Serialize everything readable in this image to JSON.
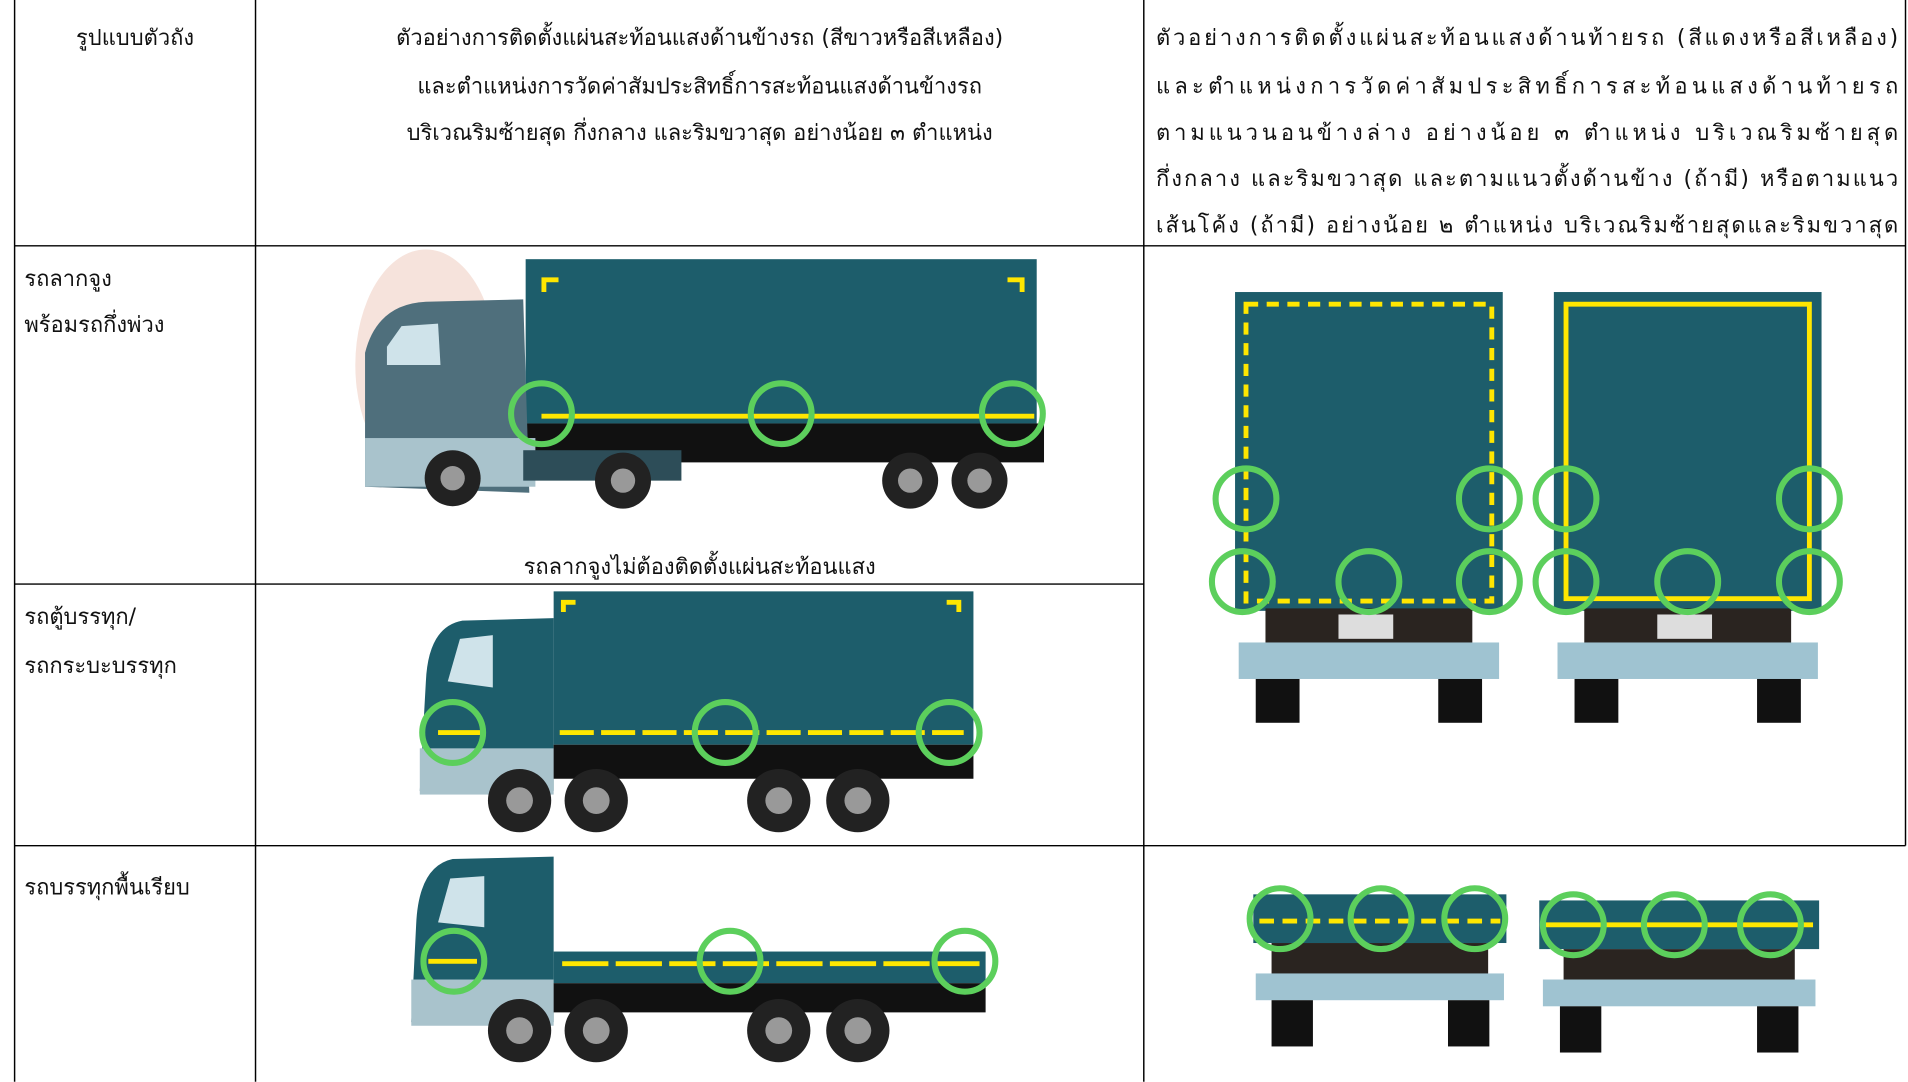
{
  "table": {
    "header": [
      [
        "รูปแบบตัวถัง"
      ],
      [
        "ตัวอย่างการติดตั้งแผ่นสะท้อนแสงด้านข้างรถ (สีขาวหรือสีเหลือง)",
        "และตำแหน่งการวัดค่าสัมประสิทธิ์การสะท้อนแสงด้านข้างรถ",
        "บริเวณริมซ้ายสุด กึ่งกลาง และริมขวาสุด อย่างน้อย ๓ ตำแหน่ง"
      ],
      [
        "ตัวอย่างการติดตั้งแผ่นสะท้อนแสงด้านท้ายรถ (สีแดงหรือสีเหลือง)",
        "และตำแหน่งการวัดค่าสัมประสิทธิ์การสะท้อนแสงด้านท้ายรถ",
        "ตามแนวนอนข้างล่าง อย่างน้อย ๓ ตำแหน่ง บริเวณริมซ้ายสุด",
        "กึ่งกลาง และริมขวาสุด และตามแนวตั้งด้านข้าง (ถ้ามี) หรือตามแนว",
        "เส้นโค้ง (ถ้ามี) อย่างน้อย ๒ ตำแหน่ง บริเวณริมซ้ายสุดและริมขวาสุด"
      ]
    ],
    "rows": [
      {
        "type": [
          "รถลากจูง",
          "พร้อมรถกึ่งพ่วง"
        ],
        "note": "รถลากจูงไม่ต้องติดตั้งแผ่นสะท้อนแสง"
      },
      {
        "type": [
          "รถตู้บรรทุก/",
          "รถกระบะบรรทุก"
        ]
      },
      {
        "type": [
          "รถบรรทุกพื้นเรียบ"
        ]
      }
    ]
  }
}
